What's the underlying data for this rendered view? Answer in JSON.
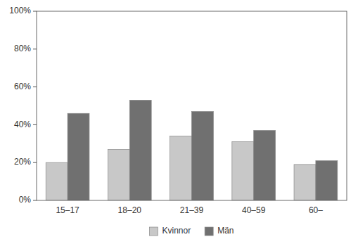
{
  "chart_data": {
    "type": "bar",
    "categories": [
      "15–17",
      "18–20",
      "21–39",
      "40–59",
      "60–"
    ],
    "series": [
      {
        "name": "Kvinnor",
        "color": "#c8c8c8",
        "values": [
          20,
          27,
          34,
          31,
          19
        ]
      },
      {
        "name": "Män",
        "color": "#707070",
        "values": [
          46,
          53,
          47,
          37,
          21
        ]
      }
    ],
    "ylim": [
      0,
      100
    ],
    "yticks": [
      {
        "value": 0,
        "label": "0%"
      },
      {
        "value": 20,
        "label": "20%"
      },
      {
        "value": 40,
        "label": "40%"
      },
      {
        "value": 60,
        "label": "60%"
      },
      {
        "value": 80,
        "label": "80%"
      },
      {
        "value": 100,
        "label": "100%"
      }
    ],
    "grid": false,
    "legend": "bottom"
  }
}
